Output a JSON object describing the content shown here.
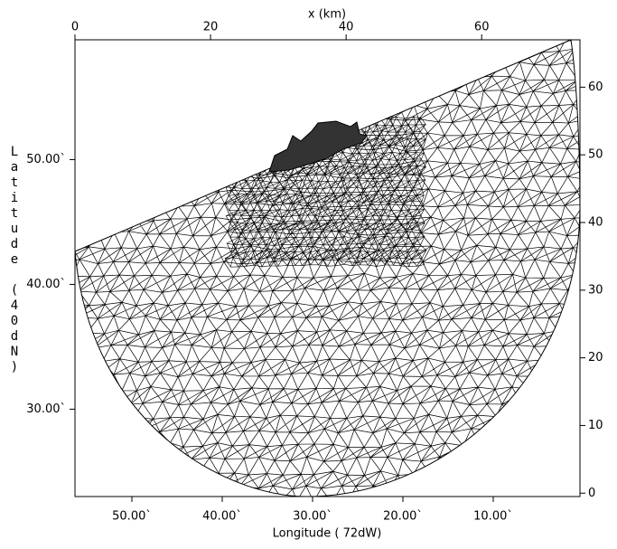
{
  "chart_data": {
    "type": "mesh",
    "x_label": "Longitude ( 72dW)",
    "y_label": "Latitude (40dN)",
    "x2_label": "x (km)",
    "xlim": [
      56.3,
      0.4
    ],
    "xticks": [
      {
        "value": 50,
        "label": "50.00`"
      },
      {
        "value": 40,
        "label": "40.00`"
      },
      {
        "value": 30,
        "label": "30.00`"
      },
      {
        "value": 20,
        "label": "20.00`"
      },
      {
        "value": 10,
        "label": "10.00`"
      }
    ],
    "ylim": [
      23.0,
      59.6
    ],
    "yticks": [
      {
        "value": 30,
        "label": "30.00`"
      },
      {
        "value": 40,
        "label": "40.00`"
      },
      {
        "value": 50,
        "label": "50.00`"
      }
    ],
    "x2lim": [
      0,
      74.5
    ],
    "x2ticks": [
      0,
      20,
      40,
      60
    ],
    "y2lim": [
      -0.5,
      67
    ],
    "y2ticks": [
      0,
      10,
      20,
      30,
      40,
      50,
      60
    ]
  }
}
